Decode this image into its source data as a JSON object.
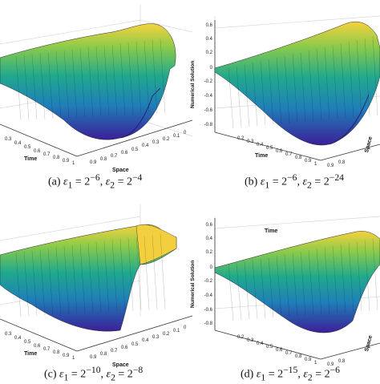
{
  "panels": [
    {
      "id": "a",
      "caption": "(a) ε1 = 2−6,  ε2 = 2−4",
      "caption_tex": {
        "label": "(a)",
        "e1": "ε",
        "s1": "1",
        "eq1": " = 2",
        "p1": "−6",
        "sep": ",  ",
        "e2": "ε",
        "s2": "2",
        "eq2": " = 2",
        "p2": "−4"
      },
      "time_label": "Time",
      "space_label": "Space",
      "zlabel": "",
      "time_ticks": [
        "0.3",
        "0.4",
        "0.5",
        "0.6",
        "0.7",
        "0.8",
        "0.9",
        "1"
      ],
      "space_ticks": [
        "0.9",
        "0.8",
        "0.7",
        "0.6",
        "0.5",
        "0.4",
        "0.3",
        "0.2",
        "0.1",
        "0"
      ],
      "z_ticks": []
    },
    {
      "id": "b",
      "caption": "(b) ε1 = 2−6,  ε2 = 2−24",
      "caption_tex": {
        "label": "(b)",
        "e1": "ε",
        "s1": "1",
        "eq1": " = 2",
        "p1": "−6",
        "sep": ",  ",
        "e2": "ε",
        "s2": "2",
        "eq2": " = 2",
        "p2": "−24"
      },
      "time_label": "Time",
      "space_label": "Space",
      "zlabel": "Numerical Solution",
      "time_ticks": [
        "0.2",
        "0.3",
        "0.4",
        "0.5",
        "0.6",
        "0.7",
        "0.8",
        "0.9",
        "1"
      ],
      "space_ticks": [
        "0.9",
        "0.8"
      ],
      "z_ticks": [
        "0.6",
        "0.4",
        "0.2",
        "0",
        "-0.2",
        "-0.4",
        "-0.6",
        "-0.8"
      ]
    },
    {
      "id": "c",
      "caption": "(c) ε1 = 2−10,  ε2 = 2−8",
      "caption_tex": {
        "label": "(c)",
        "e1": "ε",
        "s1": "1",
        "eq1": " = 2",
        "p1": "−10",
        "sep": ",  ",
        "e2": "ε",
        "s2": "2",
        "eq2": " = 2",
        "p2": "−8"
      },
      "time_label": "Time",
      "space_label": "Space",
      "zlabel": "",
      "time_ticks": [
        "0.3",
        "0.4",
        "0.5",
        "0.6",
        "0.7",
        "0.8",
        "0.9",
        "1"
      ],
      "space_ticks": [
        "0.9",
        "0.8",
        "0.7",
        "0.6",
        "0.5",
        "0.4",
        "0.3",
        "0.2",
        "0.1",
        "0"
      ],
      "z_ticks": []
    },
    {
      "id": "d",
      "caption": "(d) ε1 = 2−15,  ε2 = 2−6",
      "caption_tex": {
        "label": "(d)",
        "e1": "ε",
        "s1": "1",
        "eq1": " = 2",
        "p1": "−15",
        "sep": ",  ",
        "e2": "ε",
        "s2": "2",
        "eq2": " = 2",
        "p2": "−6"
      },
      "time_label": "Time",
      "space_label": "Space",
      "zlabel": "Numerical Solution",
      "time_ticks": [
        "0.2",
        "0.3",
        "0.4",
        "0.5",
        "0.6",
        "0.7",
        "0.8",
        "0.9",
        "1"
      ],
      "space_ticks": [
        "0.9",
        "0.8"
      ],
      "z_ticks": [
        "0.6",
        "0.4",
        "0.2",
        "0",
        "-0.2",
        "-0.4",
        "-0.6",
        "-0.8"
      ]
    }
  ],
  "colors": {
    "low": "#3b1f99",
    "mid_low": "#1f7fb8",
    "mid": "#20a98d",
    "mid_high": "#8ccb4a",
    "high": "#f7d13d",
    "axis": "#333333",
    "grid": "#d9d9d9"
  }
}
